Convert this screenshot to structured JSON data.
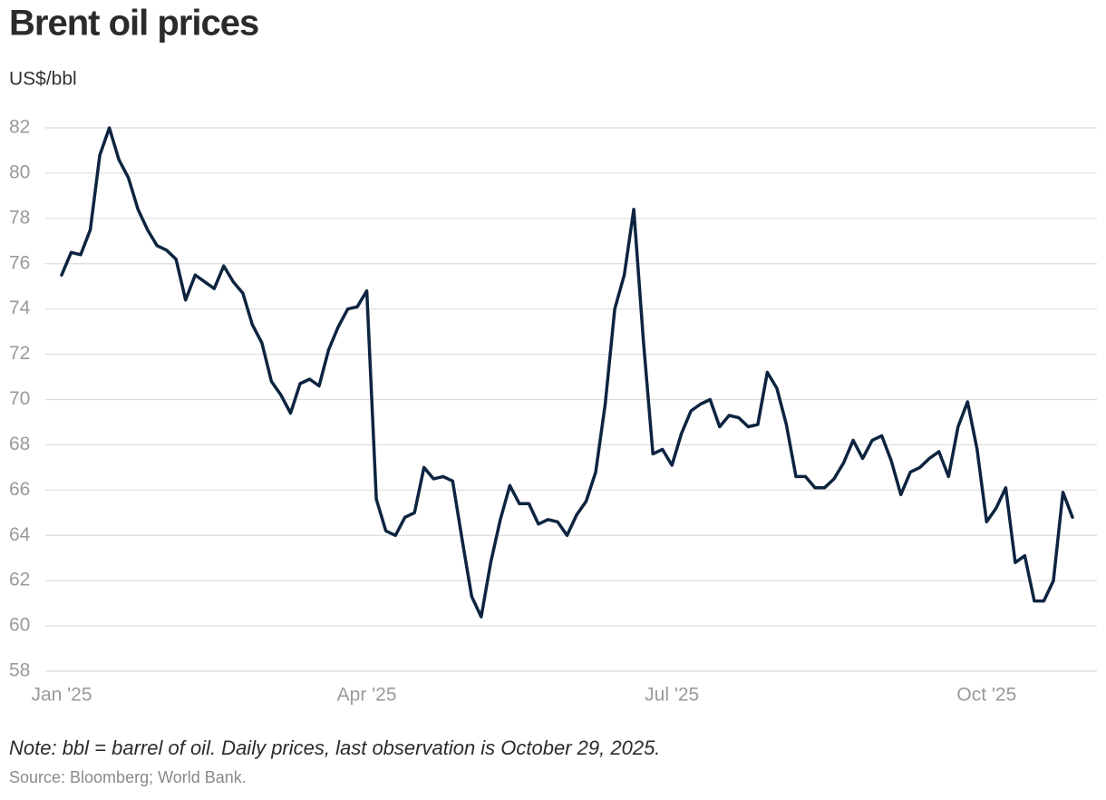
{
  "chart_data": {
    "type": "line",
    "title": "Brent oil prices",
    "y_label": "US$/bbl",
    "note": "Note: bbl = barrel of oil. Daily prices, last observation is October 29, 2025.",
    "source": "Source: Bloomberg; World Bank.",
    "categories": [
      "Jan '25",
      null,
      null,
      null,
      null,
      null,
      null,
      null,
      null,
      null,
      null,
      null,
      null,
      null,
      null,
      null,
      null,
      null,
      null,
      null,
      null,
      null,
      null,
      null,
      null,
      null,
      null,
      null,
      null,
      null,
      null,
      null,
      "Apr '25",
      null,
      null,
      null,
      null,
      null,
      null,
      null,
      null,
      null,
      null,
      null,
      null,
      null,
      null,
      null,
      null,
      null,
      null,
      null,
      null,
      null,
      null,
      null,
      null,
      null,
      null,
      null,
      null,
      null,
      null,
      null,
      "Jul '25",
      null,
      null,
      null,
      null,
      null,
      null,
      null,
      null,
      null,
      null,
      null,
      null,
      null,
      null,
      null,
      null,
      null,
      null,
      null,
      null,
      null,
      null,
      null,
      null,
      null,
      null,
      null,
      null,
      null,
      null,
      null,
      null,
      "Oct '25",
      null,
      null,
      null,
      null,
      null,
      null,
      null,
      null,
      null
    ],
    "series": [
      {
        "name": "Brent",
        "color": "#0d2440",
        "values": [
          75.5,
          76.5,
          76.4,
          77.5,
          80.8,
          82.0,
          80.6,
          79.8,
          78.4,
          77.5,
          76.8,
          76.6,
          76.2,
          74.4,
          75.5,
          75.2,
          74.9,
          75.9,
          75.2,
          74.7,
          73.3,
          72.5,
          70.8,
          70.2,
          69.4,
          70.7,
          70.9,
          70.6,
          72.2,
          73.2,
          74.0,
          74.1,
          74.8,
          65.6,
          64.2,
          64.0,
          64.8,
          65.0,
          67.0,
          66.5,
          66.6,
          66.4,
          63.8,
          61.3,
          60.4,
          62.8,
          64.7,
          66.2,
          65.4,
          65.4,
          64.5,
          64.7,
          64.6,
          64.0,
          64.9,
          65.5,
          66.8,
          69.8,
          74.0,
          75.5,
          78.4,
          72.6,
          67.6,
          67.8,
          67.1,
          68.5,
          69.5,
          69.8,
          70.0,
          68.8,
          69.3,
          69.2,
          68.8,
          68.9,
          71.2,
          70.5,
          68.9,
          66.6,
          66.6,
          66.1,
          66.1,
          66.5,
          67.2,
          68.2,
          67.4,
          68.2,
          68.4,
          67.3,
          65.8,
          66.8,
          67.0,
          67.4,
          67.7,
          66.6,
          68.8,
          69.9,
          67.8,
          64.6,
          65.2,
          66.1,
          62.8,
          63.1,
          61.1,
          61.1,
          62.0,
          65.9,
          64.8
        ]
      }
    ],
    "ylim": [
      58,
      82
    ],
    "yticks": [
      58,
      60,
      62,
      64,
      66,
      68,
      70,
      72,
      74,
      76,
      78,
      80,
      82
    ],
    "grid": true
  }
}
